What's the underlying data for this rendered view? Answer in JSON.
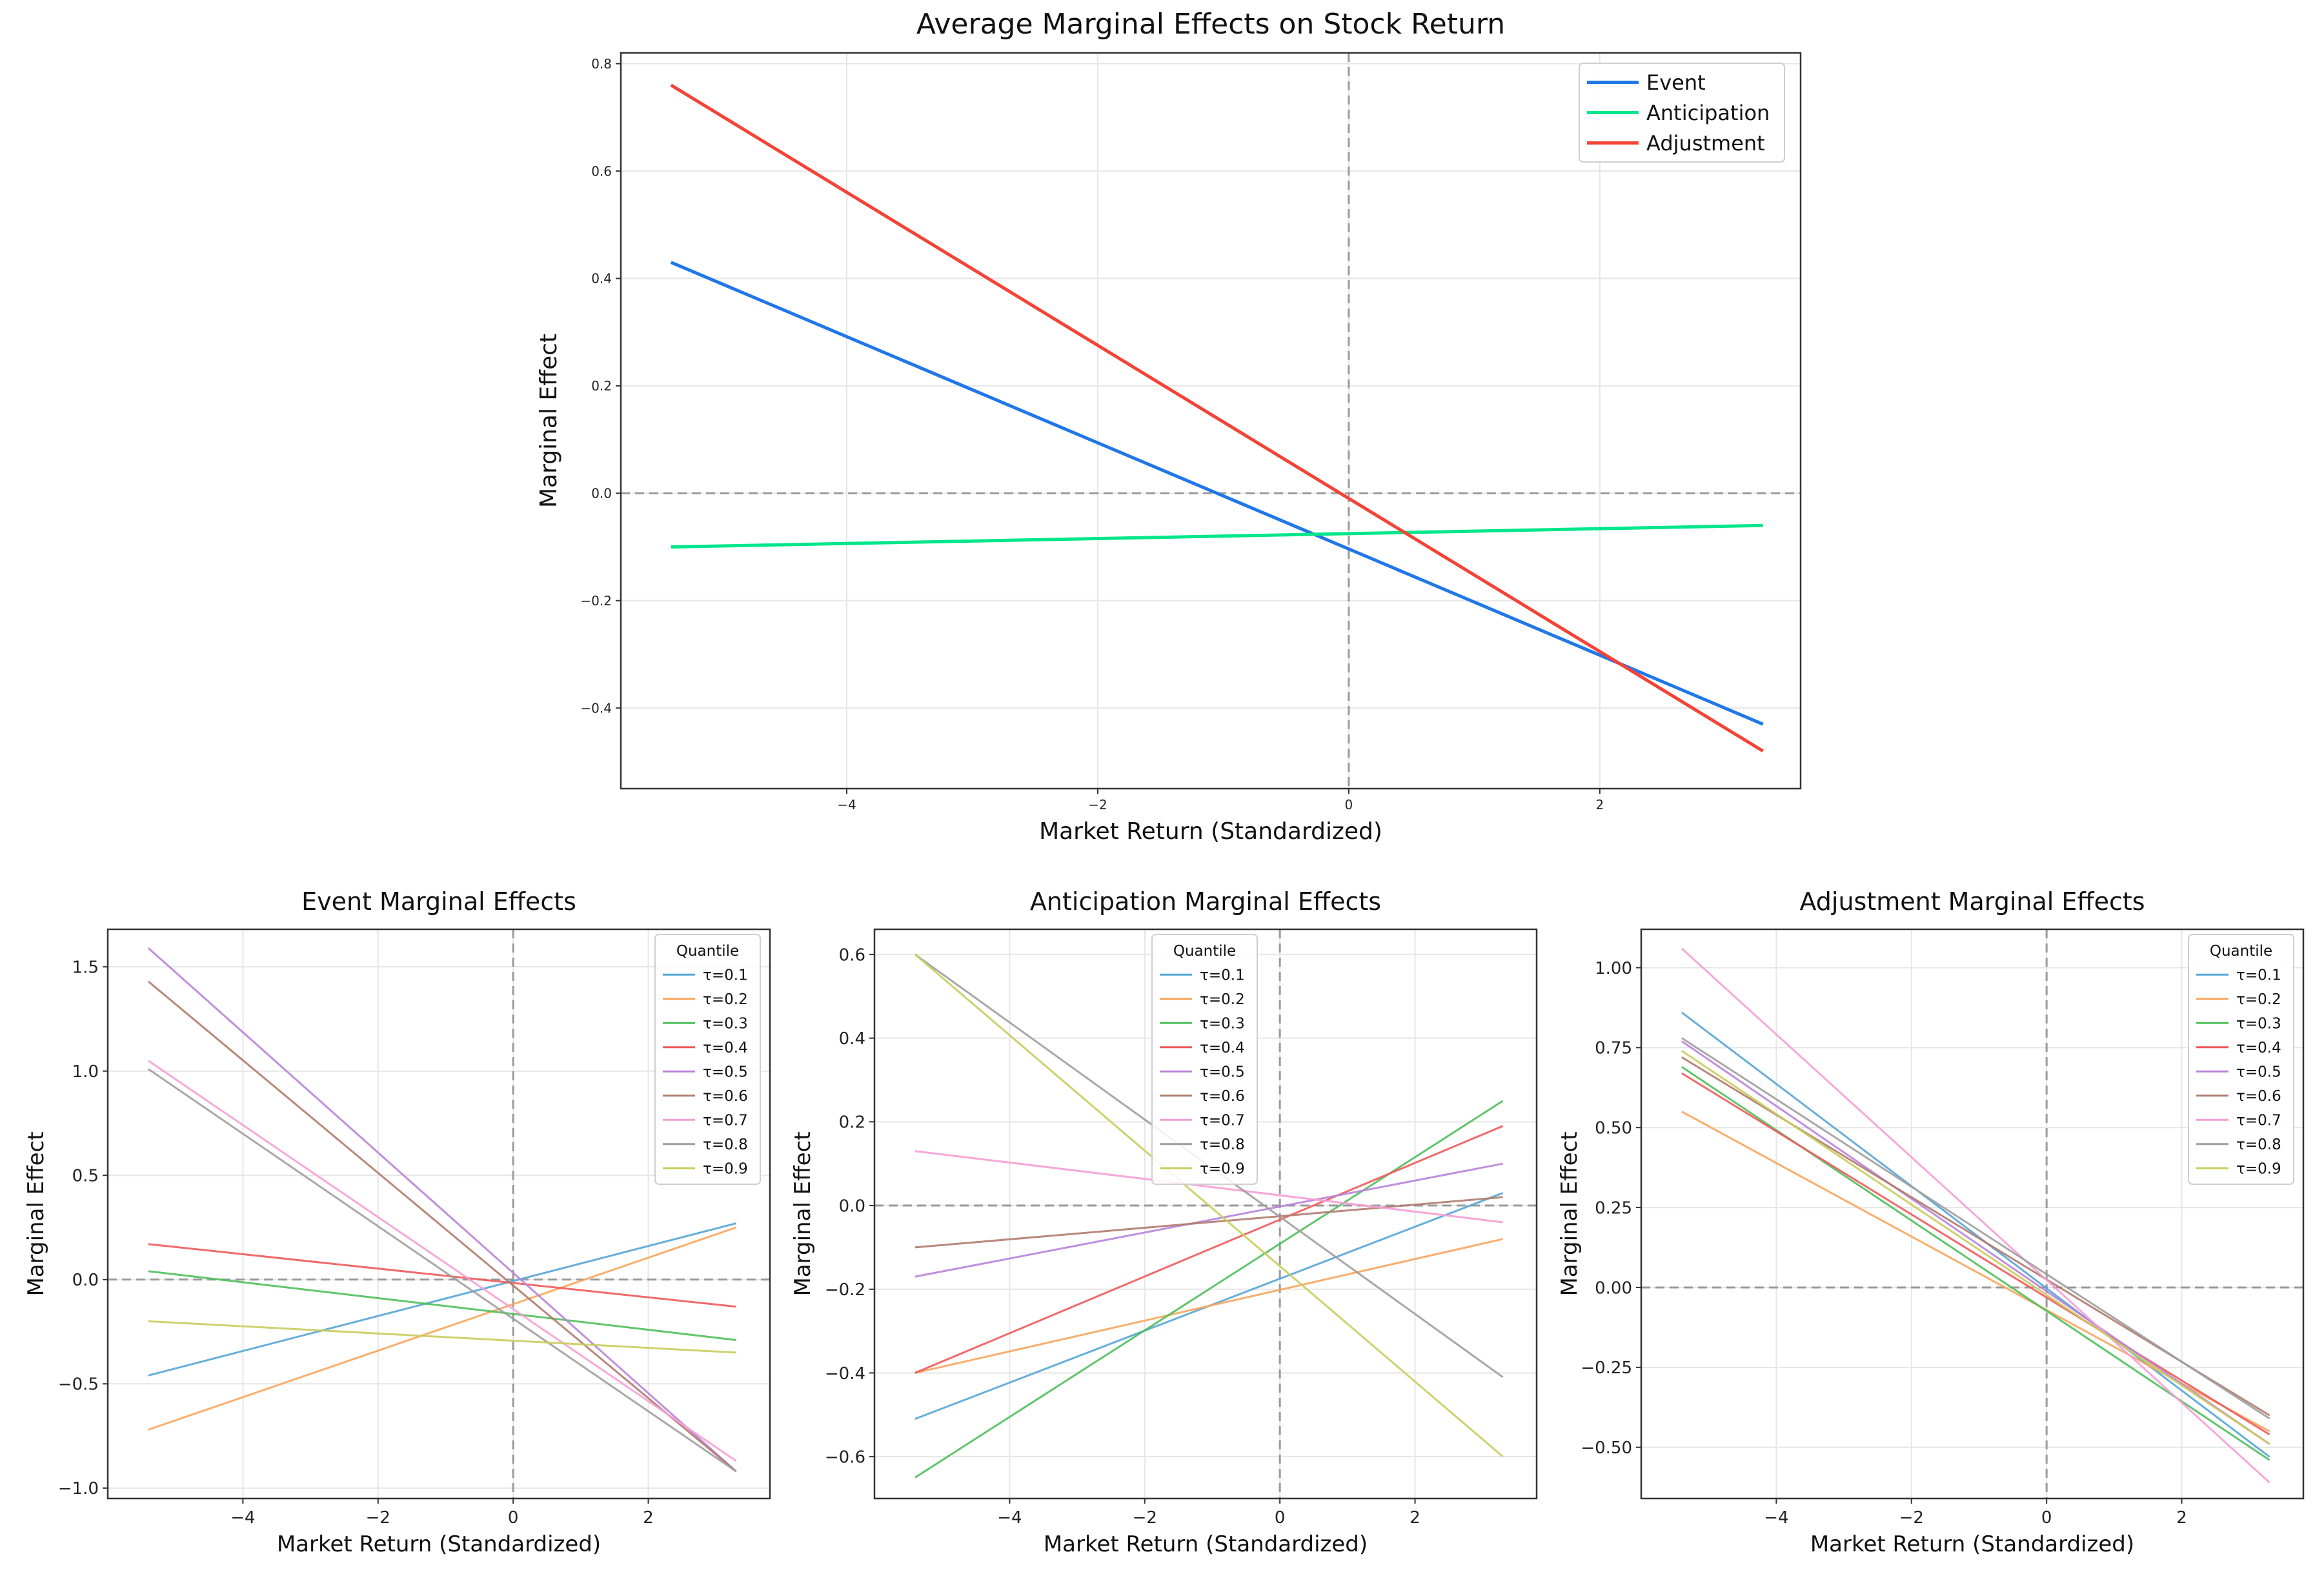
{
  "chart_data": [
    {
      "id": "main",
      "type": "line",
      "title": "Average Marginal Effects on Stock Return",
      "xlabel": "Market Return (Standardized)",
      "ylabel": "Marginal Effect",
      "xlim": [
        -5.8,
        3.6
      ],
      "ylim": [
        -0.55,
        0.82
      ],
      "xticks": [
        -4,
        -2,
        0,
        2
      ],
      "xtick_labels": [
        "−4",
        "−2",
        "0",
        "2"
      ],
      "yticks": [
        -0.4,
        -0.2,
        0.0,
        0.2,
        0.4,
        0.6,
        0.8
      ],
      "ytick_labels": [
        "−0.4",
        "−0.2",
        "0.0",
        "0.2",
        "0.4",
        "0.6",
        "0.8"
      ],
      "grid": true,
      "reference_lines": {
        "x": 0,
        "y": 0
      },
      "legend_position": "top-right",
      "legend_title": "",
      "series": [
        {
          "name": "Event",
          "color": "#1f77e8",
          "x": [
            -5.4,
            3.3
          ],
          "y": [
            0.43,
            -0.43
          ]
        },
        {
          "name": "Anticipation",
          "color": "#00e68a",
          "x": [
            -5.4,
            3.3
          ],
          "y": [
            -0.1,
            -0.06
          ]
        },
        {
          "name": "Adjustment",
          "color": "#f44336",
          "x": [
            -5.4,
            3.3
          ],
          "y": [
            0.76,
            -0.48
          ]
        }
      ]
    },
    {
      "id": "event",
      "type": "line",
      "title": "Event Marginal Effects",
      "xlabel": "Market Return (Standardized)",
      "ylabel": "Marginal Effect",
      "xlim": [
        -6.0,
        3.8
      ],
      "ylim": [
        -1.05,
        1.68
      ],
      "xticks": [
        -4,
        -2,
        0,
        2
      ],
      "xtick_labels": [
        "−4",
        "−2",
        "0",
        "2"
      ],
      "yticks": [
        -1.0,
        -0.5,
        0.0,
        0.5,
        1.0,
        1.5
      ],
      "ytick_labels": [
        "−1.0",
        "−0.5",
        "0.0",
        "0.5",
        "1.0",
        "1.5"
      ],
      "grid": true,
      "reference_lines": {
        "x": 0,
        "y": 0
      },
      "legend_position": "top-right",
      "legend_title": "Quantile",
      "series": [
        {
          "name": "τ=0.1",
          "color": "#56a5d6",
          "x": [
            -5.4,
            3.3
          ],
          "y": [
            -0.46,
            0.27
          ]
        },
        {
          "name": "τ=0.2",
          "color": "#f7a55c",
          "x": [
            -5.4,
            3.3
          ],
          "y": [
            -0.72,
            0.25
          ]
        },
        {
          "name": "τ=0.3",
          "color": "#4fbf5b",
          "x": [
            -5.4,
            3.3
          ],
          "y": [
            0.04,
            -0.29
          ]
        },
        {
          "name": "τ=0.4",
          "color": "#f05a5a",
          "x": [
            -5.4,
            3.3
          ],
          "y": [
            0.17,
            -0.13
          ]
        },
        {
          "name": "τ=0.5",
          "color": "#b983d9",
          "x": [
            -5.4,
            3.3
          ],
          "y": [
            1.59,
            -0.92
          ]
        },
        {
          "name": "τ=0.6",
          "color": "#b07b6e",
          "x": [
            -5.4,
            3.3
          ],
          "y": [
            1.43,
            -0.92
          ]
        },
        {
          "name": "τ=0.7",
          "color": "#f59ed6",
          "x": [
            -5.4,
            3.3
          ],
          "y": [
            1.05,
            -0.87
          ]
        },
        {
          "name": "τ=0.8",
          "color": "#9e9e9e",
          "x": [
            -5.4,
            3.3
          ],
          "y": [
            1.01,
            -0.92
          ]
        },
        {
          "name": "τ=0.9",
          "color": "#c9cc5c",
          "x": [
            -5.4,
            3.3
          ],
          "y": [
            -0.2,
            -0.35
          ]
        }
      ]
    },
    {
      "id": "anticipation",
      "type": "line",
      "title": "Anticipation Marginal Effects",
      "xlabel": "Market Return (Standardized)",
      "ylabel": "Marginal Effect",
      "xlim": [
        -6.0,
        3.8
      ],
      "ylim": [
        -0.7,
        0.66
      ],
      "xticks": [
        -4,
        -2,
        0,
        2
      ],
      "xtick_labels": [
        "−4",
        "−2",
        "0",
        "2"
      ],
      "yticks": [
        -0.6,
        -0.4,
        -0.2,
        0.0,
        0.2,
        0.4,
        0.6
      ],
      "ytick_labels": [
        "−0.6",
        "−0.4",
        "−0.2",
        "0.0",
        "0.2",
        "0.4",
        "0.6"
      ],
      "grid": true,
      "reference_lines": {
        "x": 0,
        "y": 0
      },
      "legend_position": "top-left",
      "legend_title": "Quantile",
      "series": [
        {
          "name": "τ=0.1",
          "color": "#56a5d6",
          "x": [
            -5.4,
            3.3
          ],
          "y": [
            -0.51,
            0.03
          ]
        },
        {
          "name": "τ=0.2",
          "color": "#f7a55c",
          "x": [
            -5.4,
            3.3
          ],
          "y": [
            -0.4,
            -0.08
          ]
        },
        {
          "name": "τ=0.3",
          "color": "#4fbf5b",
          "x": [
            -5.4,
            3.3
          ],
          "y": [
            -0.65,
            0.25
          ]
        },
        {
          "name": "τ=0.4",
          "color": "#f05a5a",
          "x": [
            -5.4,
            3.3
          ],
          "y": [
            -0.4,
            0.19
          ]
        },
        {
          "name": "τ=0.5",
          "color": "#b983d9",
          "x": [
            -5.4,
            3.3
          ],
          "y": [
            -0.17,
            0.1
          ]
        },
        {
          "name": "τ=0.6",
          "color": "#b07b6e",
          "x": [
            -5.4,
            3.3
          ],
          "y": [
            -0.1,
            0.02
          ]
        },
        {
          "name": "τ=0.7",
          "color": "#f59ed6",
          "x": [
            -5.4,
            3.3
          ],
          "y": [
            0.13,
            -0.04
          ]
        },
        {
          "name": "τ=0.8",
          "color": "#9e9e9e",
          "x": [
            -5.4,
            3.3
          ],
          "y": [
            0.6,
            -0.41
          ]
        },
        {
          "name": "τ=0.9",
          "color": "#c9cc5c",
          "x": [
            -5.4,
            3.3
          ],
          "y": [
            0.6,
            -0.6
          ]
        }
      ]
    },
    {
      "id": "adjustment",
      "type": "line",
      "title": "Adjustment Marginal Effects",
      "xlabel": "Market Return (Standardized)",
      "ylabel": "Marginal Effect",
      "xlim": [
        -6.0,
        3.8
      ],
      "ylim": [
        -0.66,
        1.12
      ],
      "xticks": [
        -4,
        -2,
        0,
        2
      ],
      "xtick_labels": [
        "−4",
        "−2",
        "0",
        "2"
      ],
      "yticks": [
        -0.5,
        -0.25,
        0.0,
        0.25,
        0.5,
        0.75,
        1.0
      ],
      "ytick_labels": [
        "−0.50",
        "−0.25",
        "0.00",
        "0.25",
        "0.50",
        "0.75",
        "1.00"
      ],
      "grid": true,
      "reference_lines": {
        "x": 0,
        "y": 0
      },
      "legend_position": "top-right",
      "legend_title": "Quantile",
      "series": [
        {
          "name": "τ=0.1",
          "color": "#56a5d6",
          "x": [
            -5.4,
            3.3
          ],
          "y": [
            0.86,
            -0.53
          ]
        },
        {
          "name": "τ=0.2",
          "color": "#f7a55c",
          "x": [
            -5.4,
            3.3
          ],
          "y": [
            0.55,
            -0.45
          ]
        },
        {
          "name": "τ=0.3",
          "color": "#4fbf5b",
          "x": [
            -5.4,
            3.3
          ],
          "y": [
            0.69,
            -0.54
          ]
        },
        {
          "name": "τ=0.4",
          "color": "#f05a5a",
          "x": [
            -5.4,
            3.3
          ],
          "y": [
            0.67,
            -0.46
          ]
        },
        {
          "name": "τ=0.5",
          "color": "#b983d9",
          "x": [
            -5.4,
            3.3
          ],
          "y": [
            0.77,
            -0.49
          ]
        },
        {
          "name": "τ=0.6",
          "color": "#b07b6e",
          "x": [
            -5.4,
            3.3
          ],
          "y": [
            0.72,
            -0.4
          ]
        },
        {
          "name": "τ=0.7",
          "color": "#f59ed6",
          "x": [
            -5.4,
            3.3
          ],
          "y": [
            1.06,
            -0.61
          ]
        },
        {
          "name": "τ=0.8",
          "color": "#9e9e9e",
          "x": [
            -5.4,
            3.3
          ],
          "y": [
            0.78,
            -0.41
          ]
        },
        {
          "name": "τ=0.9",
          "color": "#c9cc5c",
          "x": [
            -5.4,
            3.3
          ],
          "y": [
            0.74,
            -0.49
          ]
        }
      ]
    }
  ]
}
